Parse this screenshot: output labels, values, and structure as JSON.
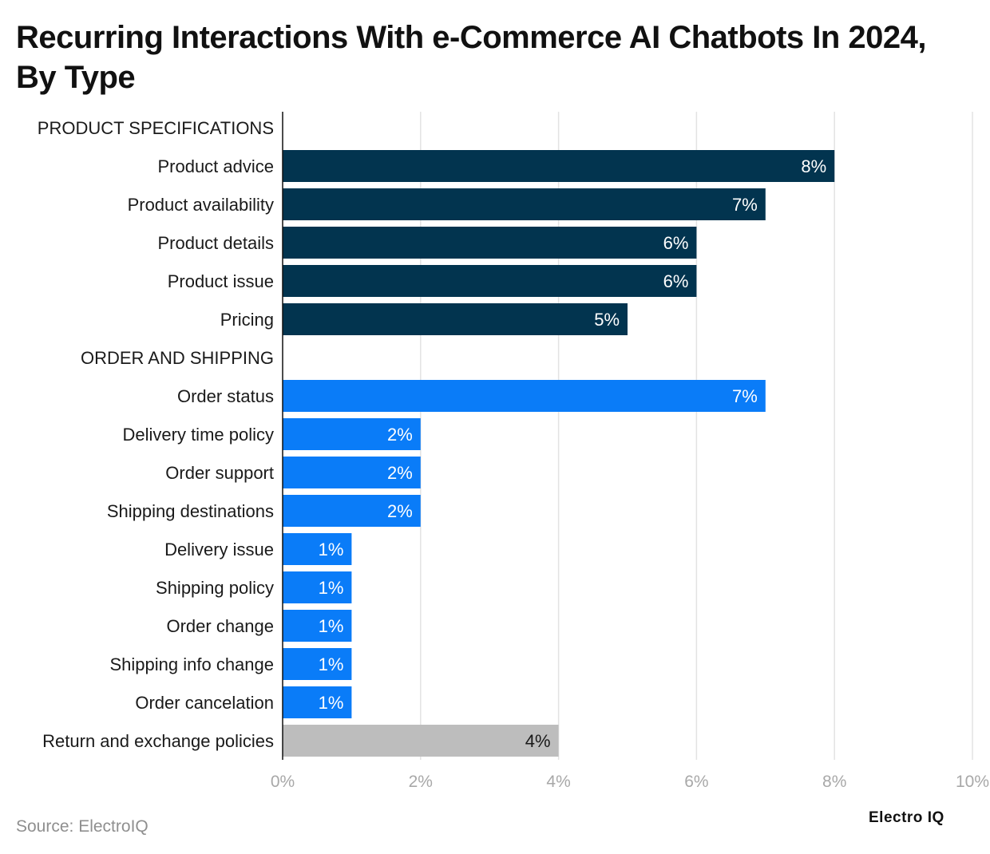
{
  "title": "Recurring Interactions With e-Commerce AI Chatbots In 2024, By Type",
  "footer": {
    "source": "Source: ElectroIQ",
    "brand": "Electro IQ"
  },
  "colors": {
    "product": "#02344f",
    "order": "#0a7cf8",
    "other": "#bdbdbd",
    "grid": "#e3e3e3",
    "axis_text": "#a8a8a8",
    "bar_label": "#ffffff",
    "bar_label_dark": "#1a1a1a"
  },
  "chart_data": {
    "type": "bar",
    "orientation": "horizontal",
    "x_range": [
      0,
      10
    ],
    "x_ticks": [
      "0%",
      "2%",
      "4%",
      "6%",
      "8%",
      "10%"
    ],
    "grid": true,
    "rows": [
      {
        "label": "PRODUCT SPECIFICATIONS",
        "header": true
      },
      {
        "label": "Product advice",
        "value": 8,
        "value_label": "8%",
        "group": "product"
      },
      {
        "label": "Product availability",
        "value": 7,
        "value_label": "7%",
        "group": "product"
      },
      {
        "label": "Product details",
        "value": 6,
        "value_label": "6%",
        "group": "product"
      },
      {
        "label": "Product issue",
        "value": 6,
        "value_label": "6%",
        "group": "product"
      },
      {
        "label": "Pricing",
        "value": 5,
        "value_label": "5%",
        "group": "product"
      },
      {
        "label": "ORDER AND SHIPPING",
        "header": true
      },
      {
        "label": "Order status",
        "value": 7,
        "value_label": "7%",
        "group": "order"
      },
      {
        "label": "Delivery time policy",
        "value": 2,
        "value_label": "2%",
        "group": "order"
      },
      {
        "label": "Order support",
        "value": 2,
        "value_label": "2%",
        "group": "order"
      },
      {
        "label": "Shipping destinations",
        "value": 2,
        "value_label": "2%",
        "group": "order"
      },
      {
        "label": "Delivery issue",
        "value": 1,
        "value_label": "1%",
        "group": "order"
      },
      {
        "label": "Shipping policy",
        "value": 1,
        "value_label": "1%",
        "group": "order"
      },
      {
        "label": "Order change",
        "value": 1,
        "value_label": "1%",
        "group": "order"
      },
      {
        "label": "Shipping info change",
        "value": 1,
        "value_label": "1%",
        "group": "order"
      },
      {
        "label": "Order cancelation",
        "value": 1,
        "value_label": "1%",
        "group": "order"
      },
      {
        "label": "Return and exchange policies",
        "value": 4,
        "value_label": "4%",
        "group": "other"
      }
    ]
  }
}
